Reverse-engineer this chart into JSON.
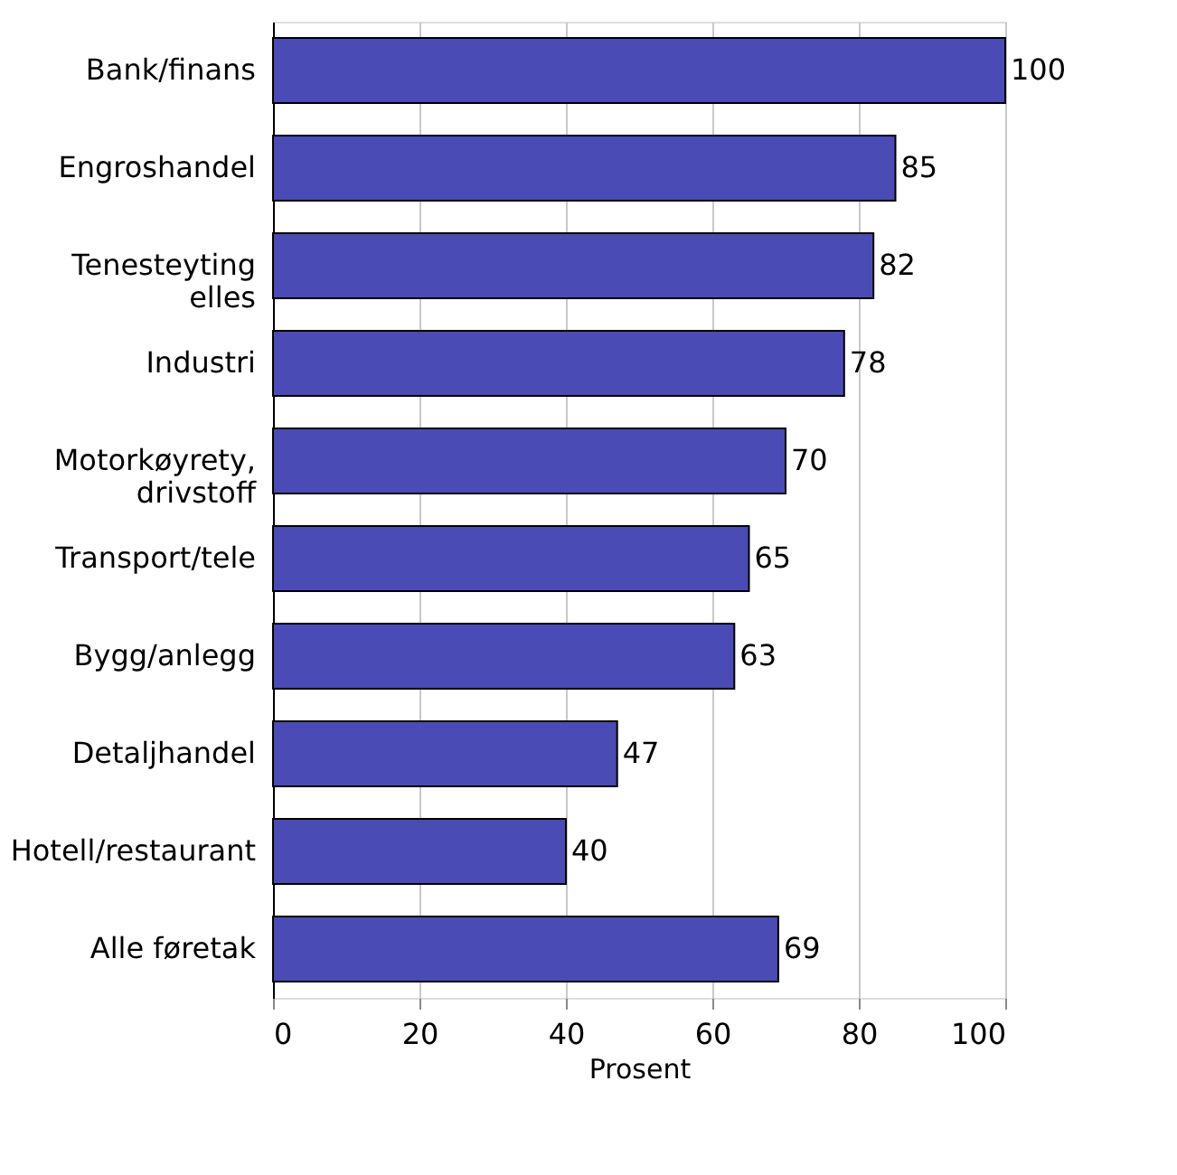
{
  "chart_data": {
    "type": "bar",
    "orientation": "horizontal",
    "xlabel": "Prosent",
    "categories": [
      "Bank/finans",
      "Engroshandel",
      "Tenesteyting elles",
      "Industri",
      "Motorkøyrety, drivstoff",
      "Transport/tele",
      "Bygg/anlegg",
      "Detaljhandel",
      "Hotell/restaurant",
      "Alle føretak"
    ],
    "values": [
      100,
      85,
      82,
      78,
      70,
      65,
      63,
      47,
      40,
      69
    ],
    "color": "#4b4bb5",
    "xlim": [
      0,
      100
    ],
    "xticks": [
      0,
      20,
      40,
      60,
      80,
      100
    ],
    "grid": "x",
    "data_labels": true
  }
}
